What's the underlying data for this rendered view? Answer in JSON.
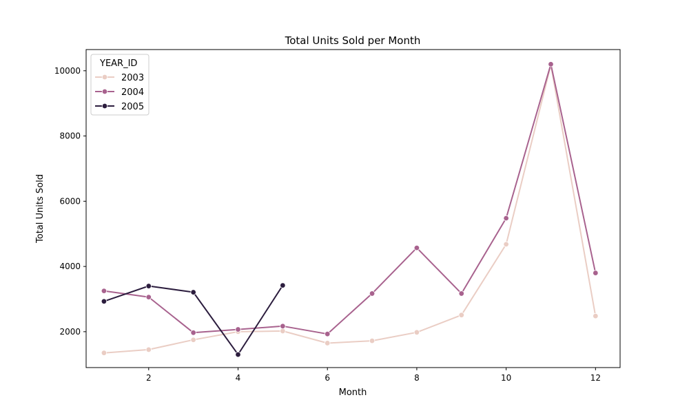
{
  "chart_data": {
    "type": "line",
    "title": "Total Units Sold per Month",
    "xlabel": "Month",
    "ylabel": "Total Units Sold",
    "xlim": [
      0.6,
      12.55
    ],
    "ylim": [
      900,
      10650
    ],
    "x_ticks": [
      2,
      4,
      6,
      8,
      10,
      12
    ],
    "y_ticks": [
      2000,
      4000,
      6000,
      8000,
      10000
    ],
    "grid": false,
    "legend": {
      "title": "YEAR_ID",
      "placement": "top-left"
    },
    "series": [
      {
        "name": "2003",
        "color": "#eacdc4",
        "x": [
          1,
          2,
          3,
          4,
          5,
          6,
          7,
          8,
          9,
          10,
          11,
          12
        ],
        "values": [
          1350,
          1450,
          1750,
          2000,
          2020,
          1650,
          1720,
          1980,
          2510,
          4680,
          10180,
          2480
        ]
      },
      {
        "name": "2004",
        "color": "#a8628e",
        "x": [
          1,
          2,
          3,
          4,
          5,
          6,
          7,
          8,
          9,
          10,
          11,
          12
        ],
        "values": [
          3250,
          3060,
          1970,
          2070,
          2170,
          1930,
          3170,
          4570,
          3170,
          5480,
          10200,
          3800
        ]
      },
      {
        "name": "2005",
        "color": "#2c1d3e",
        "x": [
          1,
          2,
          3,
          4,
          5
        ],
        "values": [
          2930,
          3400,
          3210,
          1300,
          3420
        ]
      }
    ]
  }
}
